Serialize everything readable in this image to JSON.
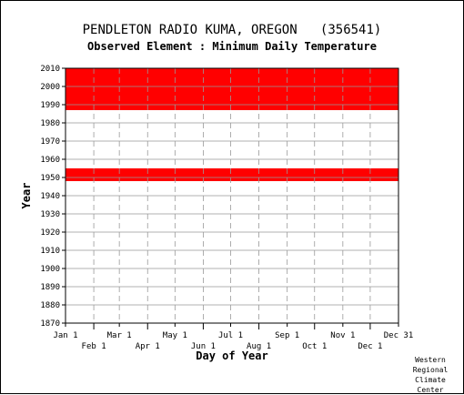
{
  "chart_data": {
    "type": "heatmap",
    "title": "PENDLETON RADIO KUMA, OREGON   (356541)",
    "subtitle": "Observed Element : Minimum Daily Temperature",
    "xlabel": "Day of Year",
    "ylabel": "Year",
    "ylim": [
      1870,
      2010
    ],
    "xlim_day_of_year": [
      1,
      366
    ],
    "y_ticks": [
      1870,
      1880,
      1890,
      1900,
      1910,
      1920,
      1930,
      1940,
      1950,
      1960,
      1970,
      1980,
      1990,
      2000,
      2010
    ],
    "x_ticks_top_row": [
      {
        "label": "Jan 1",
        "day": 1
      },
      {
        "label": "Mar 1",
        "day": 60
      },
      {
        "label": "May 1",
        "day": 121
      },
      {
        "label": "Jul 1",
        "day": 182
      },
      {
        "label": "Sep 1",
        "day": 244
      },
      {
        "label": "Nov 1",
        "day": 305
      },
      {
        "label": "Dec 31",
        "day": 366
      }
    ],
    "x_ticks_bottom_row": [
      {
        "label": "Feb 1",
        "day": 32
      },
      {
        "label": "Apr 1",
        "day": 91
      },
      {
        "label": "Jun 1",
        "day": 152
      },
      {
        "label": "Aug 1",
        "day": 213
      },
      {
        "label": "Oct 1",
        "day": 274
      },
      {
        "label": "Dec 1",
        "day": 335
      }
    ],
    "gridlines": true,
    "data_color": "#ff0000",
    "observed_periods": [
      {
        "start_year": 1948,
        "end_year": 1955,
        "start_day": 1,
        "end_day": 366
      },
      {
        "start_year": 1987,
        "end_year": 2010,
        "start_day": 1,
        "end_day": 366
      }
    ]
  },
  "credit": [
    "Western",
    "Regional",
    "Climate",
    "Center"
  ]
}
